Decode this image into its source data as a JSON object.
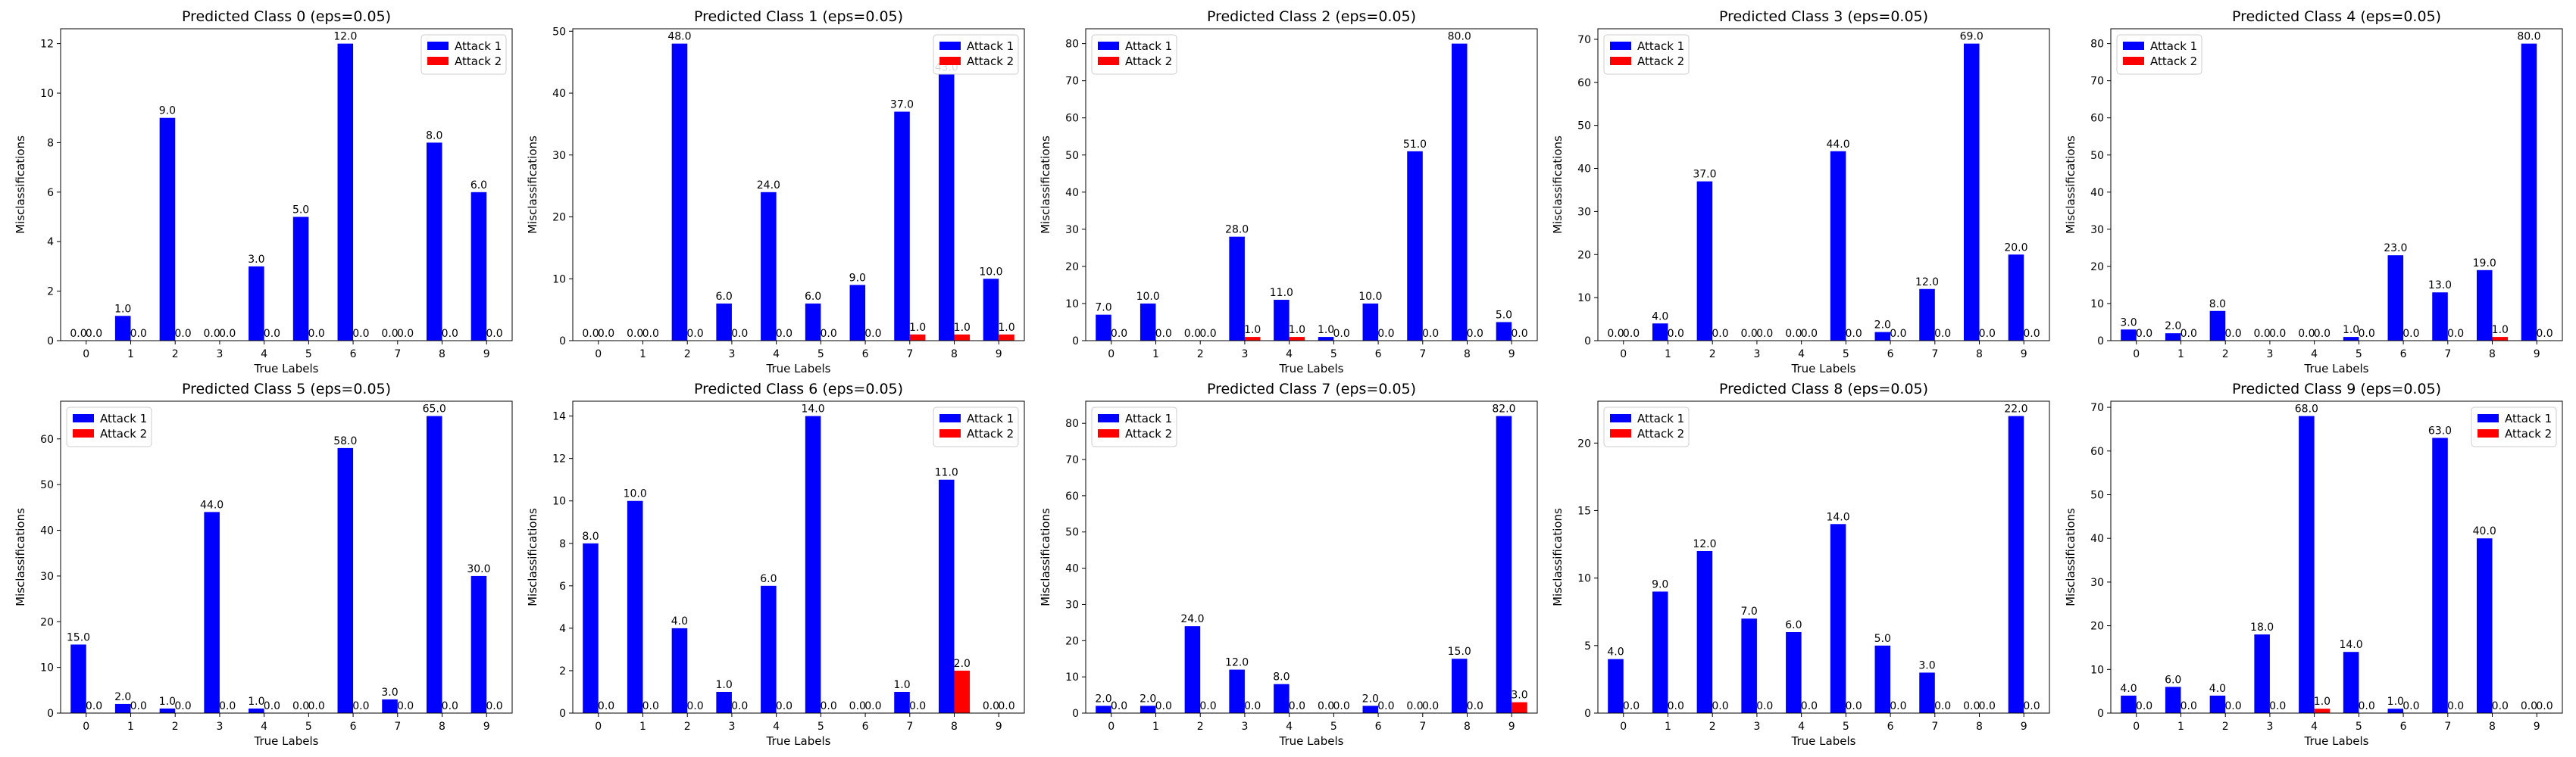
{
  "colors": {
    "attack1": "#0000ff",
    "attack2": "#ff0000"
  },
  "chart_data": [
    {
      "type": "bar",
      "title": "Predicted Class 0 (eps=0.05)",
      "xlabel": "True Labels",
      "ylabel": "Misclassifications",
      "categories": [
        "0",
        "1",
        "2",
        "3",
        "4",
        "5",
        "6",
        "7",
        "8",
        "9"
      ],
      "ylim": [
        0,
        12.6
      ],
      "yticks": [
        0,
        2,
        4,
        6,
        8,
        10,
        12
      ],
      "legend": "upper right",
      "series": [
        {
          "name": "Attack 1",
          "values": [
            0,
            1,
            9,
            0,
            3,
            5,
            12,
            0,
            8,
            6
          ]
        },
        {
          "name": "Attack 2",
          "values": [
            0,
            0,
            0,
            0,
            0,
            0,
            0,
            0,
            0,
            0
          ]
        }
      ]
    },
    {
      "type": "bar",
      "title": "Predicted Class 1 (eps=0.05)",
      "xlabel": "True Labels",
      "ylabel": "Misclassifications",
      "categories": [
        "0",
        "1",
        "2",
        "3",
        "4",
        "5",
        "6",
        "7",
        "8",
        "9"
      ],
      "ylim": [
        0,
        50.4
      ],
      "yticks": [
        0,
        10,
        20,
        30,
        40,
        50
      ],
      "legend": "upper right",
      "series": [
        {
          "name": "Attack 1",
          "values": [
            0,
            0,
            48,
            6,
            24,
            6,
            9,
            37,
            43,
            10
          ]
        },
        {
          "name": "Attack 2",
          "values": [
            0,
            0,
            0,
            0,
            0,
            0,
            0,
            1,
            1,
            1
          ]
        }
      ]
    },
    {
      "type": "bar",
      "title": "Predicted Class 2 (eps=0.05)",
      "xlabel": "True Labels",
      "ylabel": "Misclassifications",
      "categories": [
        "0",
        "1",
        "2",
        "3",
        "4",
        "5",
        "6",
        "7",
        "8",
        "9"
      ],
      "ylim": [
        0,
        84
      ],
      "yticks": [
        0,
        10,
        20,
        30,
        40,
        50,
        60,
        70,
        80
      ],
      "legend": "upper left",
      "series": [
        {
          "name": "Attack 1",
          "values": [
            7,
            10,
            0,
            28,
            11,
            1,
            10,
            51,
            80,
            5
          ]
        },
        {
          "name": "Attack 2",
          "values": [
            0,
            0,
            0,
            1,
            1,
            0,
            0,
            0,
            0,
            0
          ]
        }
      ]
    },
    {
      "type": "bar",
      "title": "Predicted Class 3 (eps=0.05)",
      "xlabel": "True Labels",
      "ylabel": "Misclassifications",
      "categories": [
        "0",
        "1",
        "2",
        "3",
        "4",
        "5",
        "6",
        "7",
        "8",
        "9"
      ],
      "ylim": [
        0,
        72.45
      ],
      "yticks": [
        0,
        10,
        20,
        30,
        40,
        50,
        60,
        70
      ],
      "legend": "upper left",
      "series": [
        {
          "name": "Attack 1",
          "values": [
            0,
            4,
            37,
            0,
            0,
            44,
            2,
            12,
            69,
            20
          ]
        },
        {
          "name": "Attack 2",
          "values": [
            0,
            0,
            0,
            0,
            0,
            0,
            0,
            0,
            0,
            0
          ]
        }
      ]
    },
    {
      "type": "bar",
      "title": "Predicted Class 4 (eps=0.05)",
      "xlabel": "True Labels",
      "ylabel": "Misclassifications",
      "categories": [
        "0",
        "1",
        "2",
        "3",
        "4",
        "5",
        "6",
        "7",
        "8",
        "9"
      ],
      "ylim": [
        0,
        84
      ],
      "yticks": [
        0,
        10,
        20,
        30,
        40,
        50,
        60,
        70,
        80
      ],
      "legend": "upper left",
      "series": [
        {
          "name": "Attack 1",
          "values": [
            3,
            2,
            8,
            0,
            0,
            1,
            23,
            13,
            19,
            80
          ]
        },
        {
          "name": "Attack 2",
          "values": [
            0,
            0,
            0,
            0,
            0,
            0,
            0,
            0,
            1,
            0
          ]
        }
      ]
    },
    {
      "type": "bar",
      "title": "Predicted Class 5 (eps=0.05)",
      "xlabel": "True Labels",
      "ylabel": "Misclassifications",
      "categories": [
        "0",
        "1",
        "2",
        "3",
        "4",
        "5",
        "6",
        "7",
        "8",
        "9"
      ],
      "ylim": [
        0,
        68.25
      ],
      "yticks": [
        0,
        10,
        20,
        30,
        40,
        50,
        60
      ],
      "legend": "upper left",
      "series": [
        {
          "name": "Attack 1",
          "values": [
            15,
            2,
            1,
            44,
            1,
            0,
            58,
            3,
            65,
            30
          ]
        },
        {
          "name": "Attack 2",
          "values": [
            0,
            0,
            0,
            0,
            0,
            0,
            0,
            0,
            0,
            0
          ]
        }
      ]
    },
    {
      "type": "bar",
      "title": "Predicted Class 6 (eps=0.05)",
      "xlabel": "True Labels",
      "ylabel": "Misclassifications",
      "categories": [
        "0",
        "1",
        "2",
        "3",
        "4",
        "5",
        "6",
        "7",
        "8",
        "9"
      ],
      "ylim": [
        0,
        14.7
      ],
      "yticks": [
        0,
        2,
        4,
        6,
        8,
        10,
        12,
        14
      ],
      "legend": "upper right",
      "series": [
        {
          "name": "Attack 1",
          "values": [
            8,
            10,
            4,
            1,
            6,
            14,
            0,
            1,
            11,
            0
          ]
        },
        {
          "name": "Attack 2",
          "values": [
            0,
            0,
            0,
            0,
            0,
            0,
            0,
            0,
            2,
            0
          ]
        }
      ]
    },
    {
      "type": "bar",
      "title": "Predicted Class 7 (eps=0.05)",
      "xlabel": "True Labels",
      "ylabel": "Misclassifications",
      "categories": [
        "0",
        "1",
        "2",
        "3",
        "4",
        "5",
        "6",
        "7",
        "8",
        "9"
      ],
      "ylim": [
        0,
        86.1
      ],
      "yticks": [
        0,
        10,
        20,
        30,
        40,
        50,
        60,
        70,
        80
      ],
      "legend": "upper left",
      "series": [
        {
          "name": "Attack 1",
          "values": [
            2,
            2,
            24,
            12,
            8,
            0,
            2,
            0,
            15,
            82
          ]
        },
        {
          "name": "Attack 2",
          "values": [
            0,
            0,
            0,
            0,
            0,
            0,
            0,
            0,
            0,
            3
          ]
        }
      ]
    },
    {
      "type": "bar",
      "title": "Predicted Class 8 (eps=0.05)",
      "xlabel": "True Labels",
      "ylabel": "Misclassifications",
      "categories": [
        "0",
        "1",
        "2",
        "3",
        "4",
        "5",
        "6",
        "7",
        "8",
        "9"
      ],
      "ylim": [
        0,
        23.1
      ],
      "yticks": [
        0,
        5,
        10,
        15,
        20
      ],
      "legend": "upper left",
      "series": [
        {
          "name": "Attack 1",
          "values": [
            4,
            9,
            12,
            7,
            6,
            14,
            5,
            3,
            0,
            22
          ]
        },
        {
          "name": "Attack 2",
          "values": [
            0,
            0,
            0,
            0,
            0,
            0,
            0,
            0,
            0,
            0
          ]
        }
      ]
    },
    {
      "type": "bar",
      "title": "Predicted Class 9 (eps=0.05)",
      "xlabel": "True Labels",
      "ylabel": "Misclassifications",
      "categories": [
        "0",
        "1",
        "2",
        "3",
        "4",
        "5",
        "6",
        "7",
        "8",
        "9"
      ],
      "ylim": [
        0,
        71.4
      ],
      "yticks": [
        0,
        10,
        20,
        30,
        40,
        50,
        60,
        70
      ],
      "legend": "upper right",
      "series": [
        {
          "name": "Attack 1",
          "values": [
            4,
            6,
            4,
            18,
            68,
            14,
            1,
            63,
            40,
            0
          ]
        },
        {
          "name": "Attack 2",
          "values": [
            0,
            0,
            0,
            0,
            1,
            0,
            0,
            0,
            0,
            0
          ]
        }
      ]
    }
  ]
}
